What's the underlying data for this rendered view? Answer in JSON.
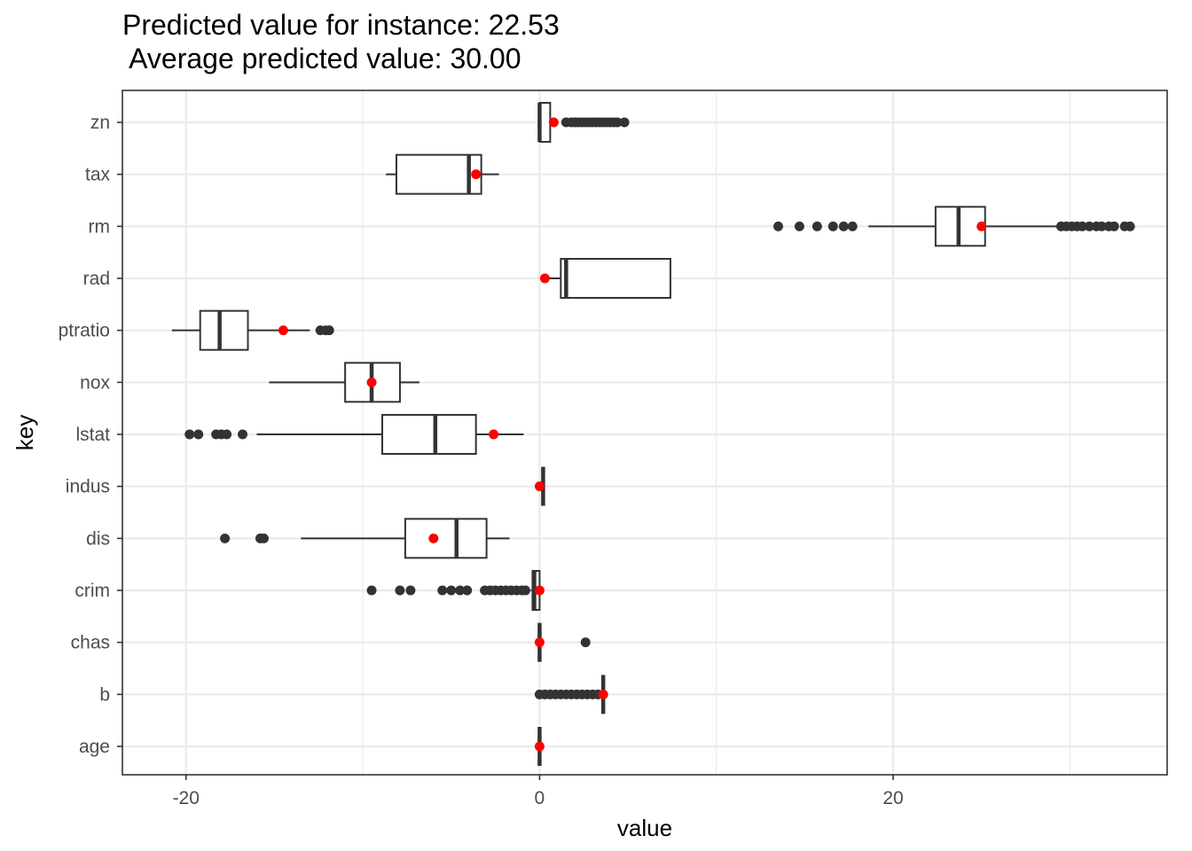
{
  "chart_data": {
    "type": "boxplot",
    "title": "Predicted value for instance: 22.53",
    "subtitle": " Average predicted value: 30.00",
    "xlabel": "value",
    "ylabel": "key",
    "xlim": [
      -23.6,
      35.5
    ],
    "xticks": [
      -20,
      0,
      20
    ],
    "xtick_labels": [
      "-20",
      "0",
      "20"
    ],
    "grid": true,
    "categories": [
      "zn",
      "tax",
      "rm",
      "rad",
      "ptratio",
      "nox",
      "lstat",
      "indus",
      "dis",
      "crim",
      "chas",
      "b",
      "age"
    ],
    "boxes": [
      {
        "key": "zn",
        "whisker_low": 0.0,
        "q1": 0.0,
        "median": 0.0,
        "q3": 0.6,
        "whisker_high": 0.6,
        "outliers": [
          1.5,
          1.8,
          2.0,
          2.2,
          2.4,
          2.6,
          2.8,
          3.0,
          3.2,
          3.4,
          3.6,
          3.8,
          4.0,
          4.2,
          4.4,
          4.8
        ],
        "instance": 0.8
      },
      {
        "key": "tax",
        "whisker_low": -8.7,
        "q1": -8.1,
        "median": -4.0,
        "q3": -3.3,
        "whisker_high": -2.3,
        "outliers": [],
        "instance": -3.6
      },
      {
        "key": "rm",
        "whisker_low": 18.6,
        "q1": 22.4,
        "median": 23.7,
        "q3": 25.2,
        "whisker_high": 29.5,
        "outliers": [
          13.5,
          14.7,
          15.7,
          16.6,
          17.2,
          17.7,
          29.5,
          29.8,
          30.1,
          30.4,
          30.7,
          31.1,
          31.5,
          31.8,
          32.2,
          32.5,
          33.1,
          33.4
        ],
        "instance": 25.0
      },
      {
        "key": "rad",
        "whisker_low": 0.4,
        "q1": 1.2,
        "median": 1.5,
        "q3": 7.4,
        "whisker_high": 7.4,
        "outliers": [],
        "instance": 0.3
      },
      {
        "key": "ptratio",
        "whisker_low": -20.8,
        "q1": -19.2,
        "median": -18.1,
        "q3": -16.5,
        "whisker_high": -13.0,
        "outliers": [
          -12.4,
          -12.1,
          -11.9
        ],
        "instance": -14.5
      },
      {
        "key": "nox",
        "whisker_low": -15.3,
        "q1": -11.0,
        "median": -9.5,
        "q3": -7.9,
        "whisker_high": -6.8,
        "outliers": [],
        "instance": -9.5
      },
      {
        "key": "lstat",
        "whisker_low": -16.0,
        "q1": -8.9,
        "median": -5.9,
        "q3": -3.6,
        "whisker_high": -0.9,
        "outliers": [
          -19.8,
          -19.3,
          -18.3,
          -18.0,
          -17.7,
          -16.8
        ],
        "instance": -2.6
      },
      {
        "key": "indus",
        "whisker_low": 0.2,
        "q1": 0.2,
        "median": 0.2,
        "q3": 0.2,
        "whisker_high": 0.2,
        "outliers": [],
        "instance": 0.0
      },
      {
        "key": "dis",
        "whisker_low": -13.5,
        "q1": -7.6,
        "median": -4.7,
        "q3": -3.0,
        "whisker_high": -1.7,
        "outliers": [
          -17.8,
          -15.8,
          -15.6
        ],
        "instance": -6.0
      },
      {
        "key": "crim",
        "whisker_low": -0.5,
        "q1": -0.4,
        "median": -0.3,
        "q3": 0.0,
        "whisker_high": 0.0,
        "outliers": [
          -9.5,
          -7.9,
          -7.3,
          -5.5,
          -5.0,
          -4.5,
          -4.1,
          -3.1,
          -2.8,
          -2.5,
          -2.2,
          -1.9,
          -1.6,
          -1.3,
          -1.0,
          -0.8
        ],
        "instance": 0.0
      },
      {
        "key": "chas",
        "whisker_low": 0.0,
        "q1": 0.0,
        "median": 0.0,
        "q3": 0.0,
        "whisker_high": 0.0,
        "outliers": [
          2.6
        ],
        "instance": 0.0
      },
      {
        "key": "b",
        "whisker_low": 3.6,
        "q1": 3.6,
        "median": 3.6,
        "q3": 3.6,
        "whisker_high": 3.6,
        "outliers": [
          0.0,
          0.3,
          0.6,
          0.9,
          1.2,
          1.5,
          1.8,
          2.1,
          2.4,
          2.7,
          3.0,
          3.3
        ],
        "instance": 3.6
      },
      {
        "key": "age",
        "whisker_low": 0.0,
        "q1": 0.0,
        "median": 0.0,
        "q3": 0.0,
        "whisker_high": 0.0,
        "outliers": [],
        "instance": 0.0
      }
    ],
    "colors": {
      "box_line": "#333333",
      "outlier": "#333333",
      "instance_point": "#ff0000",
      "grid": "#ebebeb",
      "panel_border": "#333333",
      "tick_label": "#4d4d4d"
    }
  }
}
